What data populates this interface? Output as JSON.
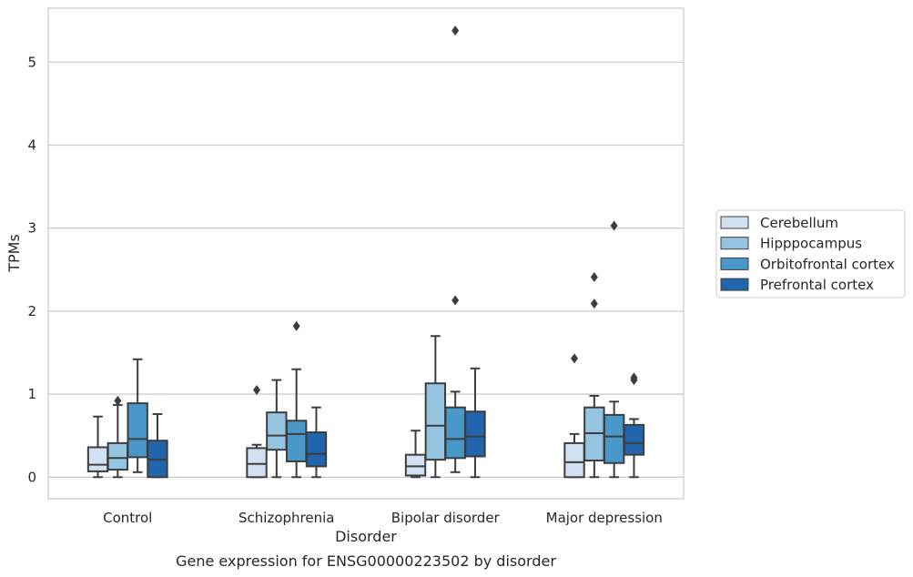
{
  "chart_data": {
    "type": "box",
    "title": "",
    "caption": "Gene expression for ENSG00000223502 by disorder",
    "xlabel": "Disorder",
    "ylabel": "TPMs",
    "ylim": [
      -0.26,
      5.65
    ],
    "yticks": [
      0,
      1,
      2,
      3,
      4,
      5
    ],
    "grid": "horizontal",
    "legend_position": "right",
    "categories": [
      "Control",
      "Schizophrenia",
      "Bipolar disorder",
      "Major depression"
    ],
    "series": [
      {
        "name": "Cerebellum",
        "color": "#d0e1f2",
        "boxes": [
          {
            "whislo": 0.0,
            "q1": 0.07,
            "med": 0.15,
            "q3": 0.36,
            "whishi": 0.73,
            "fliers": []
          },
          {
            "whislo": 0.0,
            "q1": 0.0,
            "med": 0.16,
            "q3": 0.35,
            "whishi": 0.39,
            "fliers": [
              1.05
            ]
          },
          {
            "whislo": 0.0,
            "q1": 0.02,
            "med": 0.13,
            "q3": 0.27,
            "whishi": 0.56,
            "fliers": []
          },
          {
            "whislo": 0.0,
            "q1": 0.0,
            "med": 0.18,
            "q3": 0.41,
            "whishi": 0.52,
            "fliers": [
              1.43
            ]
          }
        ]
      },
      {
        "name": "Hipppocampus",
        "color": "#94c4df",
        "boxes": [
          {
            "whislo": 0.0,
            "q1": 0.09,
            "med": 0.23,
            "q3": 0.41,
            "whishi": 0.87,
            "fliers": [
              0.92
            ]
          },
          {
            "whislo": 0.0,
            "q1": 0.33,
            "med": 0.5,
            "q3": 0.78,
            "whishi": 1.17,
            "fliers": []
          },
          {
            "whislo": 0.0,
            "q1": 0.21,
            "med": 0.62,
            "q3": 1.13,
            "whishi": 1.7,
            "fliers": []
          },
          {
            "whislo": 0.0,
            "q1": 0.2,
            "med": 0.53,
            "q3": 0.84,
            "whishi": 0.98,
            "fliers": [
              2.09,
              2.41
            ]
          }
        ]
      },
      {
        "name": "Orbitofrontal cortex",
        "color": "#4a98c9",
        "boxes": [
          {
            "whislo": 0.06,
            "q1": 0.24,
            "med": 0.46,
            "q3": 0.89,
            "whishi": 1.42,
            "fliers": []
          },
          {
            "whislo": 0.0,
            "q1": 0.19,
            "med": 0.52,
            "q3": 0.68,
            "whishi": 1.3,
            "fliers": [
              1.82
            ]
          },
          {
            "whislo": 0.06,
            "q1": 0.23,
            "med": 0.46,
            "q3": 0.84,
            "whishi": 1.03,
            "fliers": [
              2.13,
              5.38
            ]
          },
          {
            "whislo": 0.0,
            "q1": 0.17,
            "med": 0.49,
            "q3": 0.75,
            "whishi": 0.91,
            "fliers": [
              3.03
            ]
          }
        ]
      },
      {
        "name": "Prefrontal cortex",
        "color": "#2166ac",
        "boxes": [
          {
            "whislo": 0.0,
            "q1": 0.0,
            "med": 0.21,
            "q3": 0.44,
            "whishi": 0.76,
            "fliers": []
          },
          {
            "whislo": 0.0,
            "q1": 0.13,
            "med": 0.28,
            "q3": 0.54,
            "whishi": 0.84,
            "fliers": []
          },
          {
            "whislo": 0.0,
            "q1": 0.25,
            "med": 0.49,
            "q3": 0.79,
            "whishi": 1.31,
            "fliers": []
          },
          {
            "whislo": 0.0,
            "q1": 0.27,
            "med": 0.41,
            "q3": 0.63,
            "whishi": 0.7,
            "fliers": [
              1.17,
              1.2
            ]
          }
        ]
      }
    ]
  }
}
